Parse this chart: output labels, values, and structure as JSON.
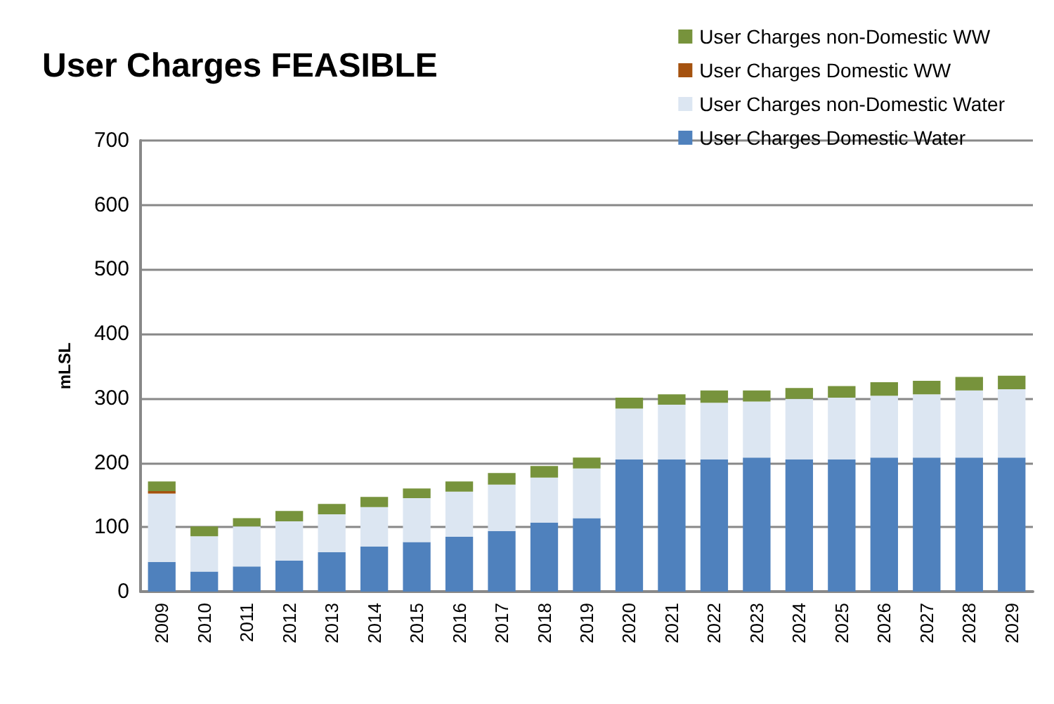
{
  "chart_data": {
    "type": "bar",
    "title": "User Charges FEASIBLE",
    "ylabel": "mLSL",
    "stacked": true,
    "categories": [
      "2009",
      "2010",
      "2011",
      "2012",
      "2013",
      "2014",
      "2015",
      "2016",
      "2017",
      "2018",
      "2019",
      "2020",
      "2021",
      "2022",
      "2023",
      "2024",
      "2025",
      "2026",
      "2027",
      "2028",
      "2029"
    ],
    "series": [
      {
        "name": "User Charges Domestic Water",
        "color": "#4f81bd",
        "values": [
          46,
          31,
          39,
          48,
          61,
          70,
          77,
          85,
          94,
          107,
          114,
          205,
          205,
          205,
          208,
          205,
          205,
          208,
          208,
          208,
          208
        ]
      },
      {
        "name": "User Charges non-Domestic Water",
        "color": "#dce6f2",
        "values": [
          106,
          55,
          62,
          61,
          59,
          61,
          68,
          70,
          72,
          70,
          77,
          79,
          85,
          88,
          87,
          94,
          96,
          96,
          98,
          104,
          106
        ]
      },
      {
        "name": "User Charges Domestic WW",
        "color": "#a5520f",
        "values": [
          4,
          0,
          0,
          0,
          0,
          0,
          0,
          0,
          0,
          0,
          0,
          0,
          0,
          0,
          0,
          0,
          0,
          0,
          0,
          0,
          0
        ]
      },
      {
        "name": "User Charges non-Domestic WW",
        "color": "#77933c",
        "values": [
          15,
          15,
          13,
          16,
          16,
          16,
          15,
          16,
          18,
          18,
          17,
          17,
          16,
          19,
          17,
          17,
          18,
          21,
          21,
          21,
          21
        ]
      }
    ],
    "ylim": [
      0,
      700
    ],
    "yticks": [
      0,
      100,
      200,
      300,
      400,
      500,
      600,
      700
    ],
    "grid": "y",
    "legend": "top right"
  }
}
